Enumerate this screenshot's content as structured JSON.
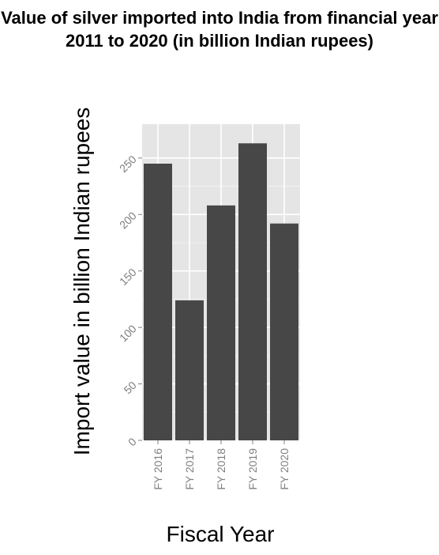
{
  "chart_data": {
    "type": "bar",
    "title": "Value of silver imported into India from financial year 2011 to 2020 (in billion Indian rupees)",
    "xlabel": "Fiscal Year",
    "ylabel": "Import value in billion Indian rupees",
    "categories": [
      "FY 2016",
      "FY 2017",
      "FY 2018",
      "FY 2019",
      "FY 2020"
    ],
    "values": [
      245,
      124,
      208,
      263,
      192
    ],
    "ylim": [
      0,
      280
    ],
    "yticks": [
      0,
      50,
      100,
      150,
      200,
      250
    ],
    "grid": true,
    "legend": "none",
    "colors": {
      "bar": "#474747",
      "panel": "#e5e5e5",
      "grid": "#ffffff",
      "tick_text": "#7f7f7f",
      "tick_mark": "#7f7f7f"
    }
  }
}
